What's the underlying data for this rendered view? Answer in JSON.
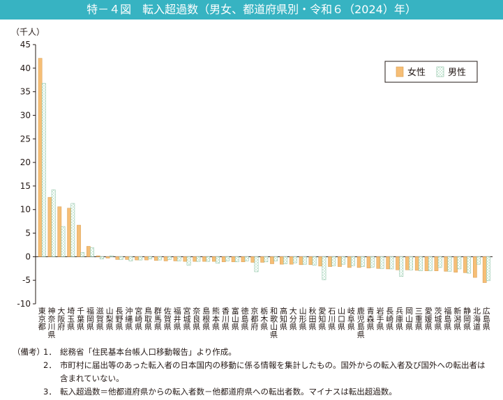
{
  "header": {
    "title": "特－４図　転入超過数（男女、都道府県別・令和６（2024）年）"
  },
  "chart_data": {
    "type": "bar",
    "unit_label": "（千人）",
    "ylim": [
      -10,
      45
    ],
    "yticks": [
      "45",
      "40",
      "35",
      "30",
      "25",
      "20",
      "15",
      "10",
      "5",
      "0",
      "-5",
      "-10"
    ],
    "legend": [
      "女性",
      "男性"
    ],
    "legend_position": "top-right",
    "grid": false,
    "categories": [
      "東京都",
      "神奈川県",
      "大阪府",
      "埼玉県",
      "千葉県",
      "福岡県",
      "滋賀県",
      "山梨県",
      "長野県",
      "沖縄県",
      "宮崎県",
      "鳥取県",
      "群馬県",
      "佐賀県",
      "福井県",
      "宮城県",
      "奈良県",
      "島根県",
      "熊本県",
      "香川県",
      "富山県",
      "徳島県",
      "京都府",
      "栃木県",
      "和歌山県",
      "高知県",
      "大分県",
      "山形県",
      "秋田県",
      "愛知県",
      "石川県",
      "山口県",
      "岐阜県",
      "鹿児島県",
      "青森県",
      "岩手県",
      "長崎県",
      "兵庫県",
      "岡山県",
      "三重県",
      "愛媛県",
      "茨城県",
      "福島県",
      "新潟県",
      "静岡県",
      "北海道",
      "広島県"
    ],
    "series": [
      {
        "name": "女性",
        "color": "#f6be76",
        "values": [
          42.1,
          12.6,
          10.6,
          10.3,
          6.7,
          2.2,
          0.2,
          -0.3,
          -0.6,
          -0.6,
          -0.7,
          -0.7,
          -0.8,
          -0.9,
          -0.9,
          -1.0,
          -1.0,
          -1.0,
          -1.0,
          -1.1,
          -1.1,
          -1.1,
          -1.2,
          -1.2,
          -1.5,
          -1.6,
          -1.6,
          -1.7,
          -1.7,
          -2.0,
          -2.1,
          -2.1,
          -2.3,
          -2.3,
          -2.4,
          -2.5,
          -2.6,
          -2.8,
          -2.8,
          -2.9,
          -3.0,
          -3.0,
          -3.1,
          -3.3,
          -3.4,
          -4.4,
          -5.5
        ]
      },
      {
        "name": "男性",
        "color": "#d2ecdd",
        "values": [
          36.8,
          14.2,
          6.4,
          11.3,
          0.9,
          1.9,
          -0.5,
          0.2,
          -0.6,
          -0.9,
          -0.7,
          -0.5,
          -0.7,
          -0.6,
          -0.9,
          -1.8,
          -1.0,
          -1.0,
          -1.4,
          -0.9,
          -1.1,
          -0.9,
          -3.2,
          -1.1,
          -0.9,
          -1.5,
          -1.3,
          -1.6,
          -1.8,
          -4.9,
          -1.9,
          -1.6,
          -1.9,
          -2.1,
          -2.2,
          -2.5,
          -2.6,
          -4.2,
          -2.8,
          -3.0,
          -3.0,
          -2.3,
          -3.1,
          -2.6,
          -3.5,
          -1.6,
          -5.1
        ]
      }
    ]
  },
  "notes": {
    "head": "（備考）",
    "items": [
      {
        "num": "1．",
        "text": "総務省「住民基本台帳人口移動報告」より作成。"
      },
      {
        "num": "2．",
        "text": "市町村に届出等のあった転入者の日本国内の移動に係る情報を集計したもの。国外からの転入者及び国外への転出者は含まれていない。"
      },
      {
        "num": "3．",
        "text": "転入超過数＝他都道府県からの転入者数－他都道府県への転出者数。マイナスは転出超過数。"
      }
    ]
  }
}
